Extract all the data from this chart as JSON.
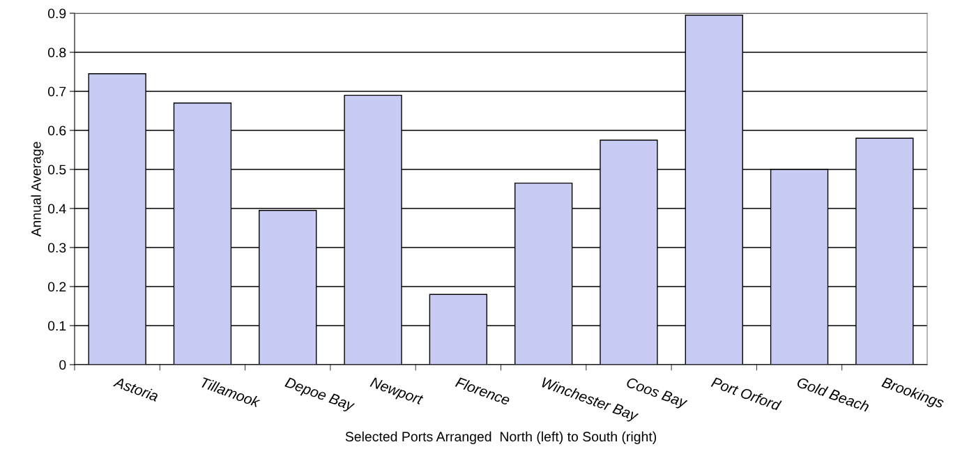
{
  "chart_data": {
    "type": "bar",
    "xlabel": "Selected Ports Arranged  North (left) to South (right)",
    "ylabel": "Annual Average",
    "categories": [
      "Astoria",
      "Tillamook",
      "Depoe Bay",
      "Newport",
      "Florence",
      "Winchester Bay",
      "Coos Bay",
      "Port Orford",
      "Gold Beach",
      "Brookings"
    ],
    "values": [
      0.745,
      0.67,
      0.395,
      0.69,
      0.18,
      0.465,
      0.575,
      0.895,
      0.5,
      0.58
    ],
    "color": "#c8ccf5",
    "ylim": [
      0,
      0.9
    ],
    "yticks": [
      0,
      0.1,
      0.2,
      0.3,
      0.4,
      0.5,
      0.6,
      0.7,
      0.8,
      0.9
    ],
    "grid": "y",
    "legend": false
  }
}
